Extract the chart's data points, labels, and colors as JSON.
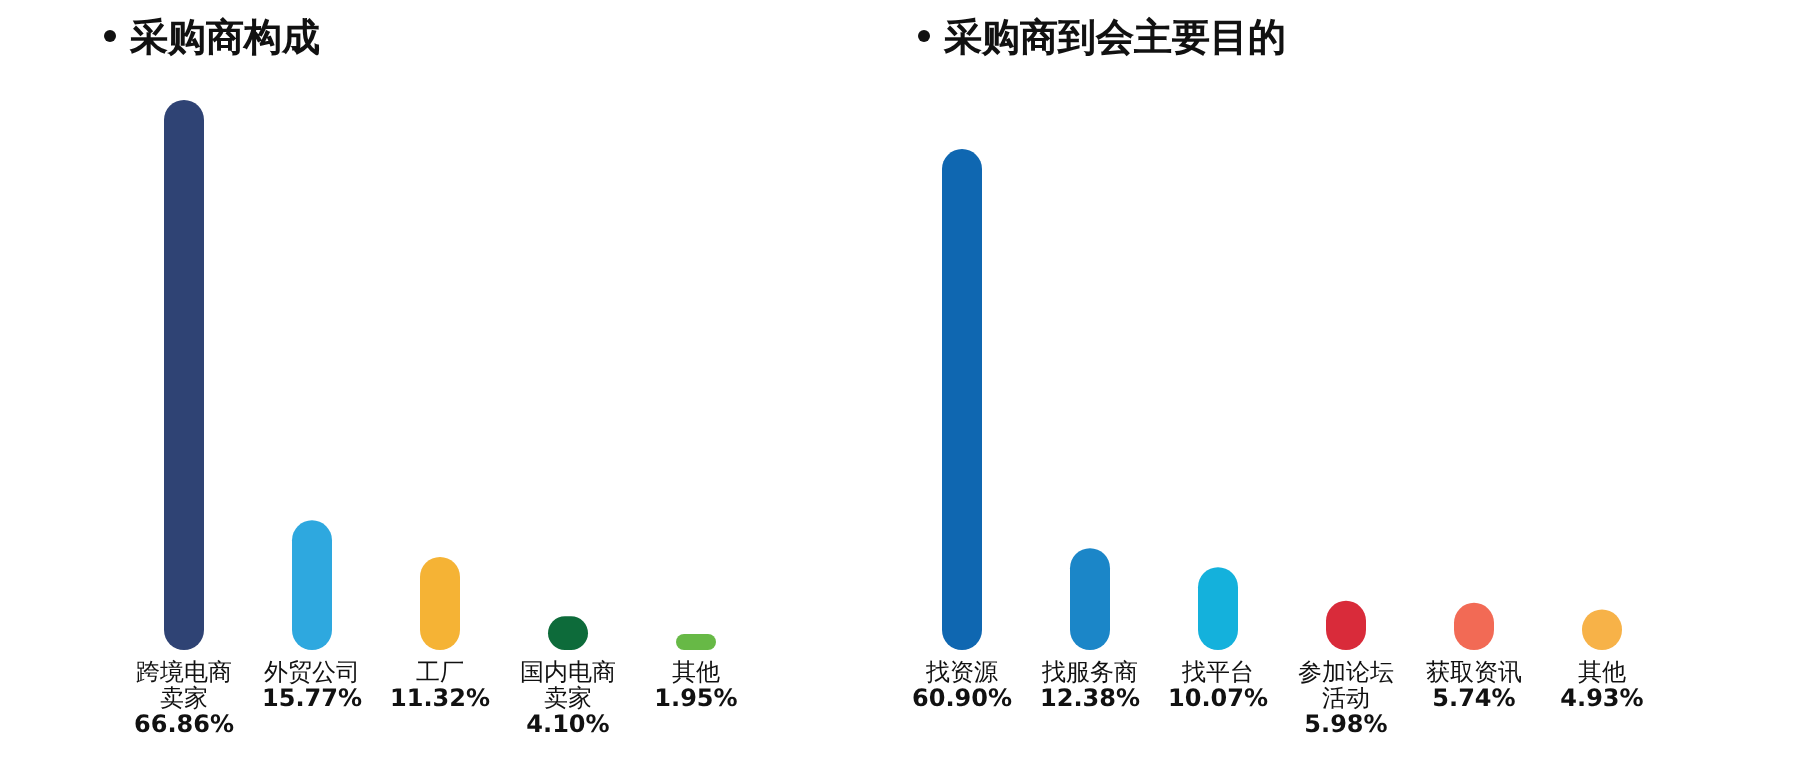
{
  "chart_data": [
    {
      "type": "bar",
      "title": "采购商构成",
      "categories": [
        "跨境电商卖家",
        "外贸公司",
        "工厂",
        "国内电商卖家",
        "其他"
      ],
      "values": [
        66.86,
        15.77,
        11.32,
        4.1,
        1.95
      ],
      "value_labels": [
        "66.86%",
        "15.77%",
        "11.32%",
        "4.10%",
        "1.95%"
      ],
      "colors": [
        "#2f4374",
        "#2ea8df",
        "#f5b335",
        "#0d6b3a",
        "#67b946"
      ]
    },
    {
      "type": "bar",
      "title": "采购商到会主要目的",
      "categories": [
        "找资源",
        "找服务商",
        "找平台",
        "参加论坛活动",
        "获取资讯",
        "其他"
      ],
      "values": [
        60.9,
        12.38,
        10.07,
        5.98,
        5.74,
        4.93
      ],
      "value_labels": [
        "60.90%",
        "12.38%",
        "10.07%",
        "5.98%",
        "5.74%",
        "4.93%"
      ],
      "colors": [
        "#0f67b1",
        "#1b86c8",
        "#14b1dc",
        "#d92b3a",
        "#f26a55",
        "#f7b248"
      ]
    }
  ]
}
